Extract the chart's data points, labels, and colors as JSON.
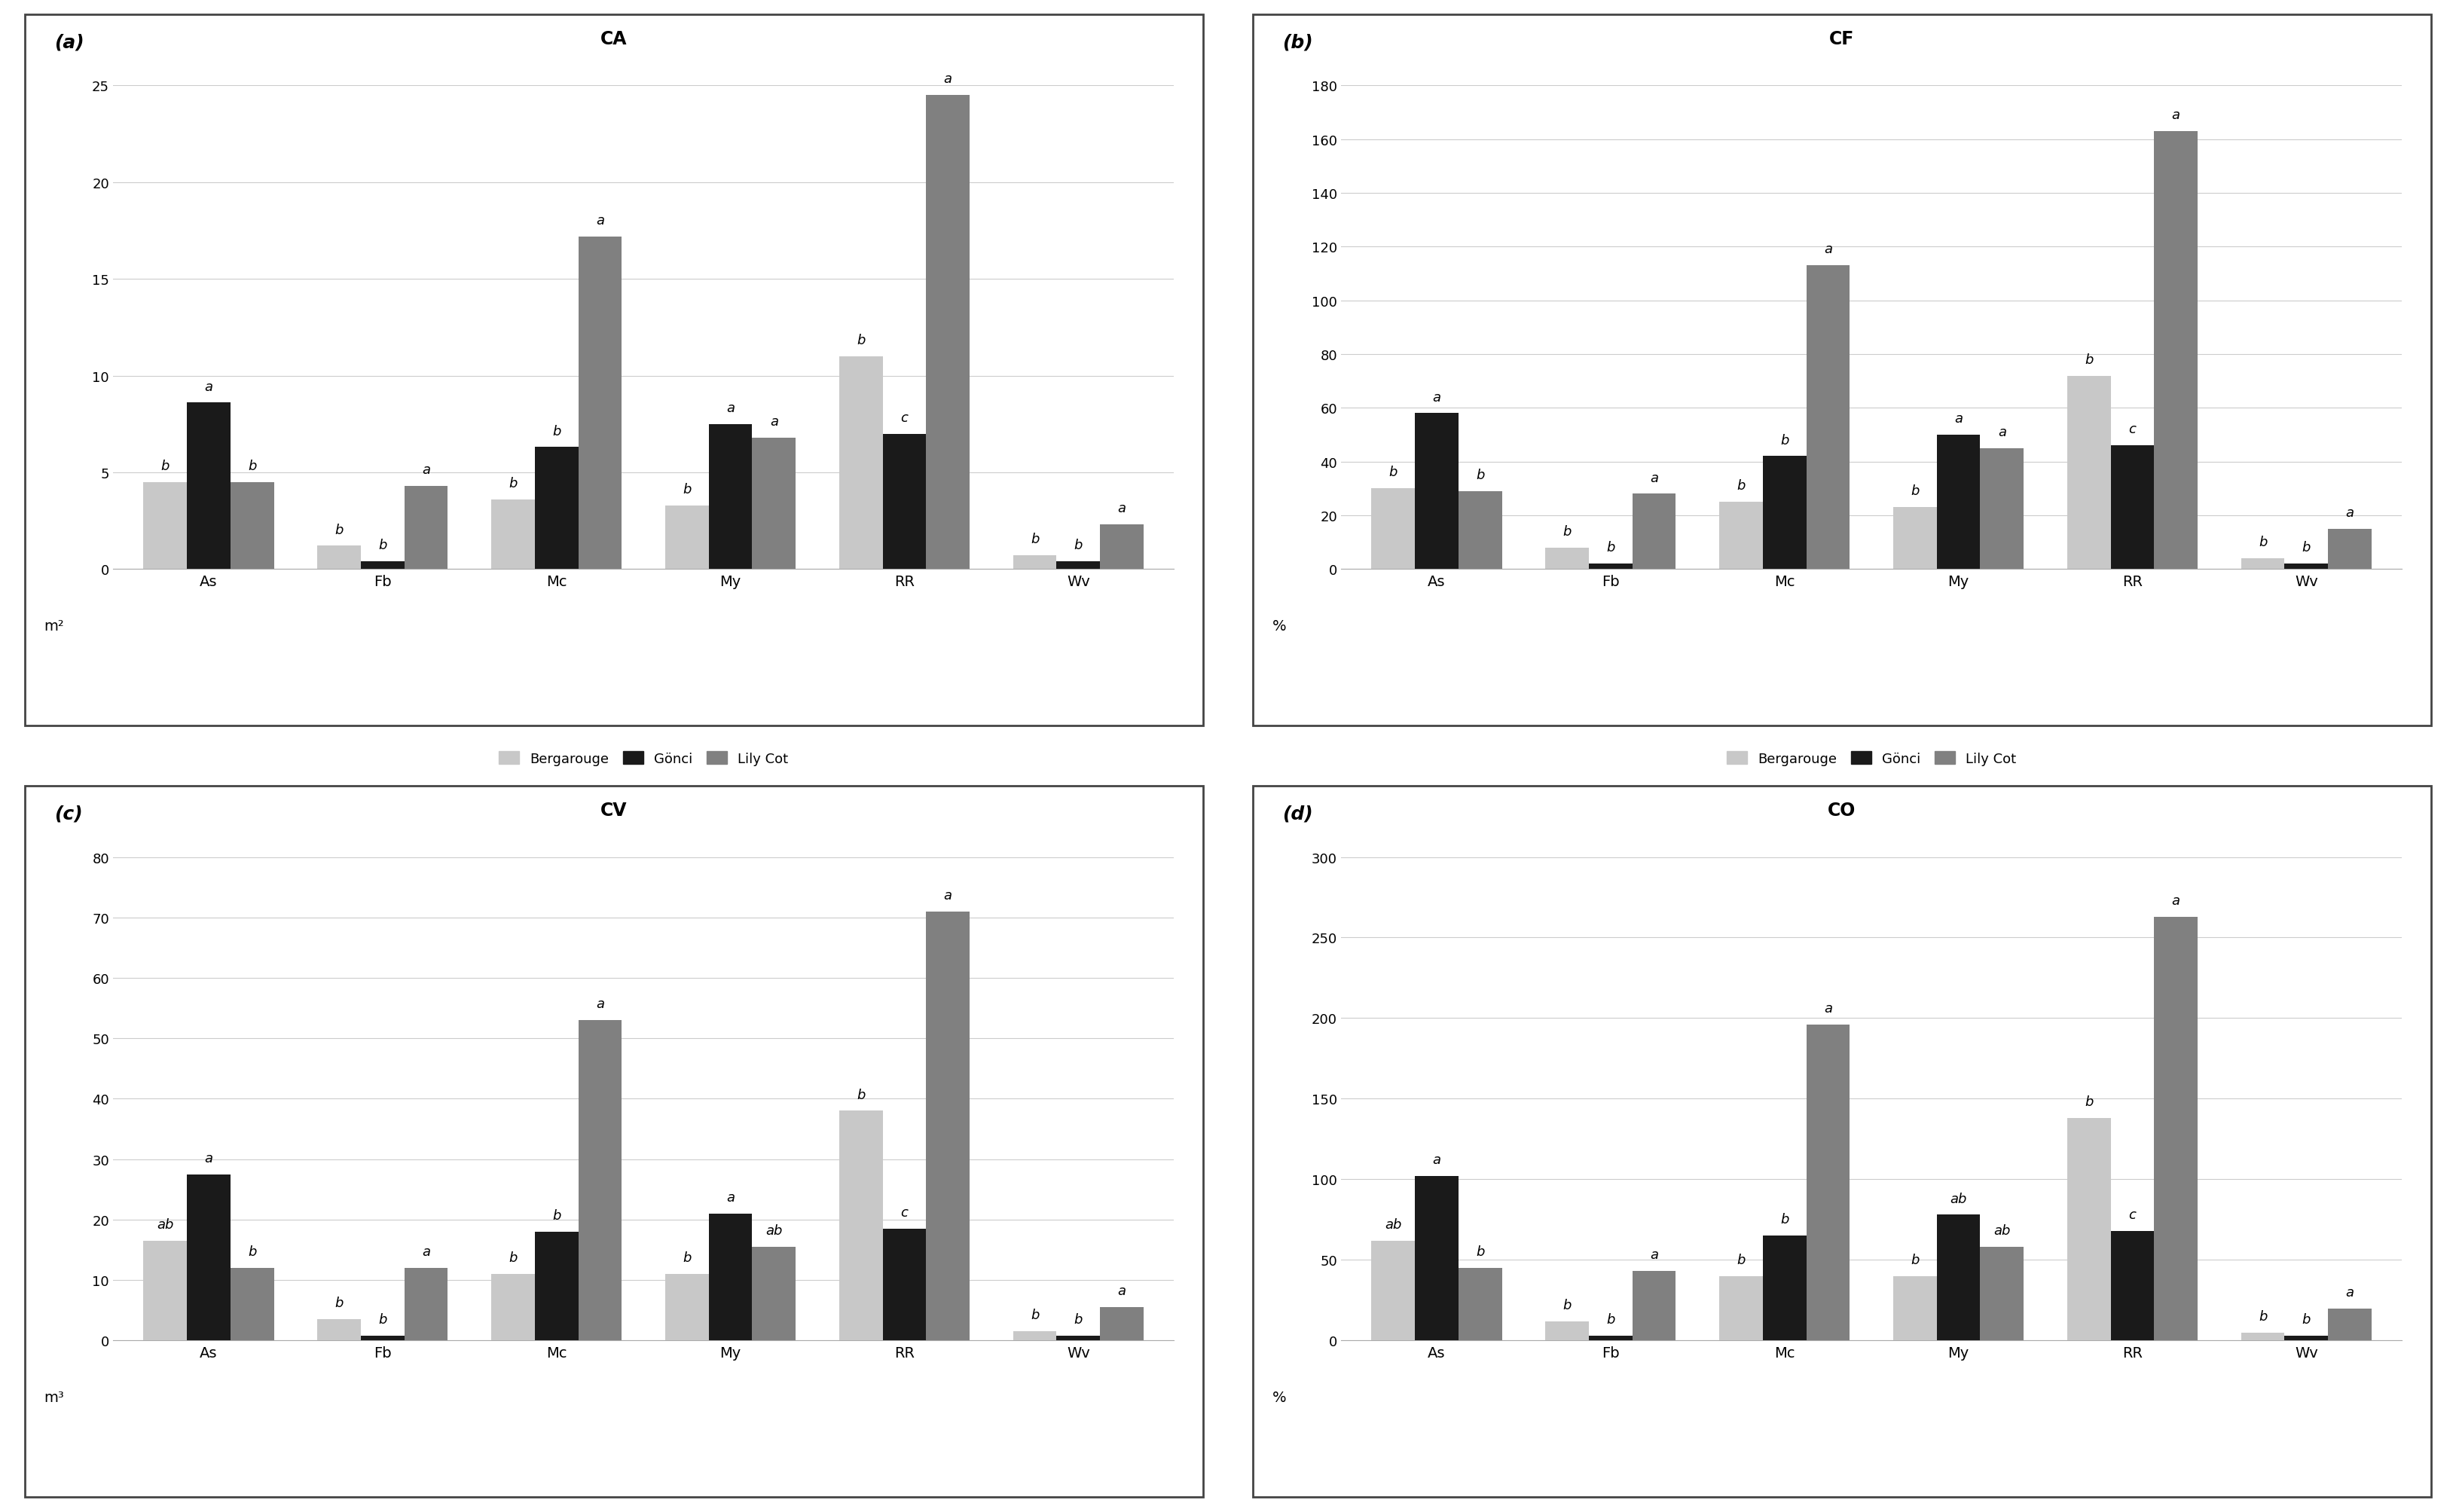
{
  "panels": [
    {
      "label": "(a)",
      "title": "CA",
      "ylabel": "m²",
      "ylim": [
        0,
        25
      ],
      "yticks": [
        0,
        5,
        10,
        15,
        20,
        25
      ],
      "categories": [
        "As",
        "Fb",
        "Mc",
        "My",
        "RR",
        "Wv"
      ],
      "bergarouge": [
        4.5,
        1.2,
        3.6,
        3.3,
        11.0,
        0.7
      ],
      "gonci": [
        8.6,
        0.4,
        6.3,
        7.5,
        7.0,
        0.4
      ],
      "lilycot": [
        4.5,
        4.3,
        17.2,
        6.8,
        24.5,
        2.3
      ],
      "letters_b": [
        "b",
        "b",
        "b",
        "b",
        "b",
        "b"
      ],
      "letters_g": [
        "a",
        "b",
        "b",
        "a",
        "c",
        "b"
      ],
      "letters_l": [
        "b",
        "a",
        "a",
        "a",
        "a",
        "a"
      ]
    },
    {
      "label": "(b)",
      "title": "CF",
      "ylabel": "%",
      "ylim": [
        0,
        180
      ],
      "yticks": [
        0,
        20,
        40,
        60,
        80,
        100,
        120,
        140,
        160,
        180
      ],
      "categories": [
        "As",
        "Fb",
        "Mc",
        "My",
        "RR",
        "Wv"
      ],
      "bergarouge": [
        30,
        8,
        25,
        23,
        72,
        4
      ],
      "gonci": [
        58,
        2,
        42,
        50,
        46,
        2
      ],
      "lilycot": [
        29,
        28,
        113,
        45,
        163,
        15
      ],
      "letters_b": [
        "b",
        "b",
        "b",
        "b",
        "b",
        "b"
      ],
      "letters_g": [
        "a",
        "b",
        "b",
        "a",
        "c",
        "b"
      ],
      "letters_l": [
        "b",
        "a",
        "a",
        "a",
        "a",
        "a"
      ]
    },
    {
      "label": "(c)",
      "title": "CV",
      "ylabel": "m³",
      "ylim": [
        0,
        80
      ],
      "yticks": [
        0,
        10,
        20,
        30,
        40,
        50,
        60,
        70,
        80
      ],
      "categories": [
        "As",
        "Fb",
        "Mc",
        "My",
        "RR",
        "Wv"
      ],
      "bergarouge": [
        16.5,
        3.5,
        11.0,
        11.0,
        38.0,
        1.5
      ],
      "gonci": [
        27.5,
        0.8,
        18.0,
        21.0,
        18.5,
        0.8
      ],
      "lilycot": [
        12.0,
        12.0,
        53.0,
        15.5,
        71.0,
        5.5
      ],
      "letters_b": [
        "ab",
        "b",
        "b",
        "b",
        "b",
        "b"
      ],
      "letters_g": [
        "a",
        "b",
        "b",
        "a",
        "c",
        "b"
      ],
      "letters_l": [
        "b",
        "a",
        "a",
        "ab",
        "a",
        "a"
      ]
    },
    {
      "label": "(d)",
      "title": "CO",
      "ylabel": "%",
      "ylim": [
        0,
        300
      ],
      "yticks": [
        0,
        50,
        100,
        150,
        200,
        250,
        300
      ],
      "categories": [
        "As",
        "Fb",
        "Mc",
        "My",
        "RR",
        "Wv"
      ],
      "bergarouge": [
        62,
        12,
        40,
        40,
        138,
        5
      ],
      "gonci": [
        102,
        3,
        65,
        78,
        68,
        3
      ],
      "lilycot": [
        45,
        43,
        196,
        58,
        263,
        20
      ],
      "letters_b": [
        "ab",
        "b",
        "b",
        "b",
        "b",
        "b"
      ],
      "letters_g": [
        "a",
        "b",
        "b",
        "ab",
        "c",
        "b"
      ],
      "letters_l": [
        "b",
        "a",
        "a",
        "ab",
        "a",
        "a"
      ]
    }
  ],
  "color_bergarouge": "#c8c8c8",
  "color_gonci": "#1a1a1a",
  "color_lilycot": "#808080",
  "bar_width": 0.25,
  "legend_labels": [
    "Bergarouge",
    "Gönci",
    "Lily Cot"
  ],
  "background_color": "#ffffff",
  "grid_color": "#cccccc",
  "border_color": "#444444"
}
